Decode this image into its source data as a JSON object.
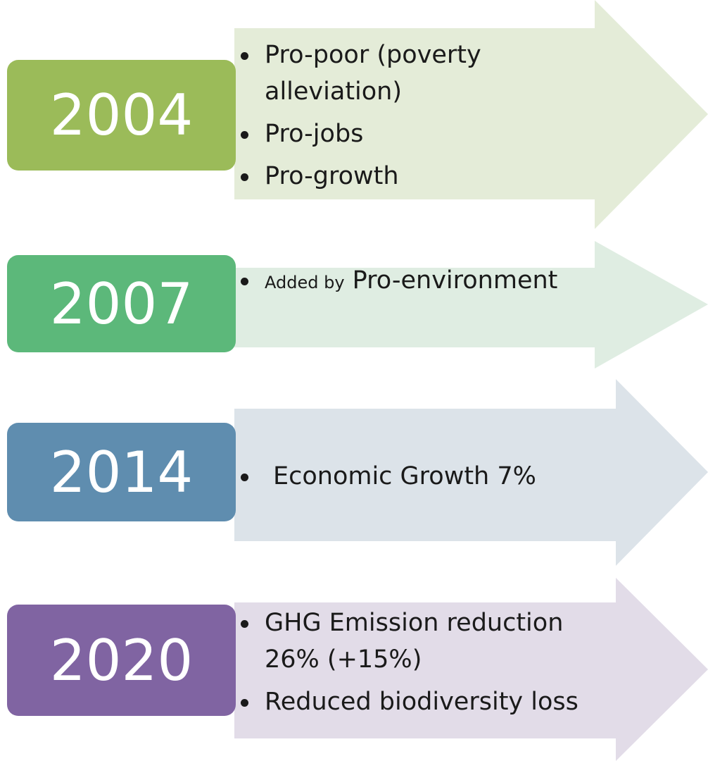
{
  "rows": [
    {
      "year": "2004",
      "bullets": [
        "Pro-poor (poverty alleviation)",
        "Pro-jobs",
        "Pro-growth"
      ]
    },
    {
      "year": "2007",
      "bullets": [
        [
          "Added by",
          "Pro-environment"
        ]
      ]
    },
    {
      "year": "2014",
      "bullets": [
        "Economic Growth 7%"
      ]
    },
    {
      "year": "2020",
      "bullets": [
        "GHG Emission reduction 26% (+15%)",
        "Reduced biodiversity loss"
      ]
    }
  ]
}
